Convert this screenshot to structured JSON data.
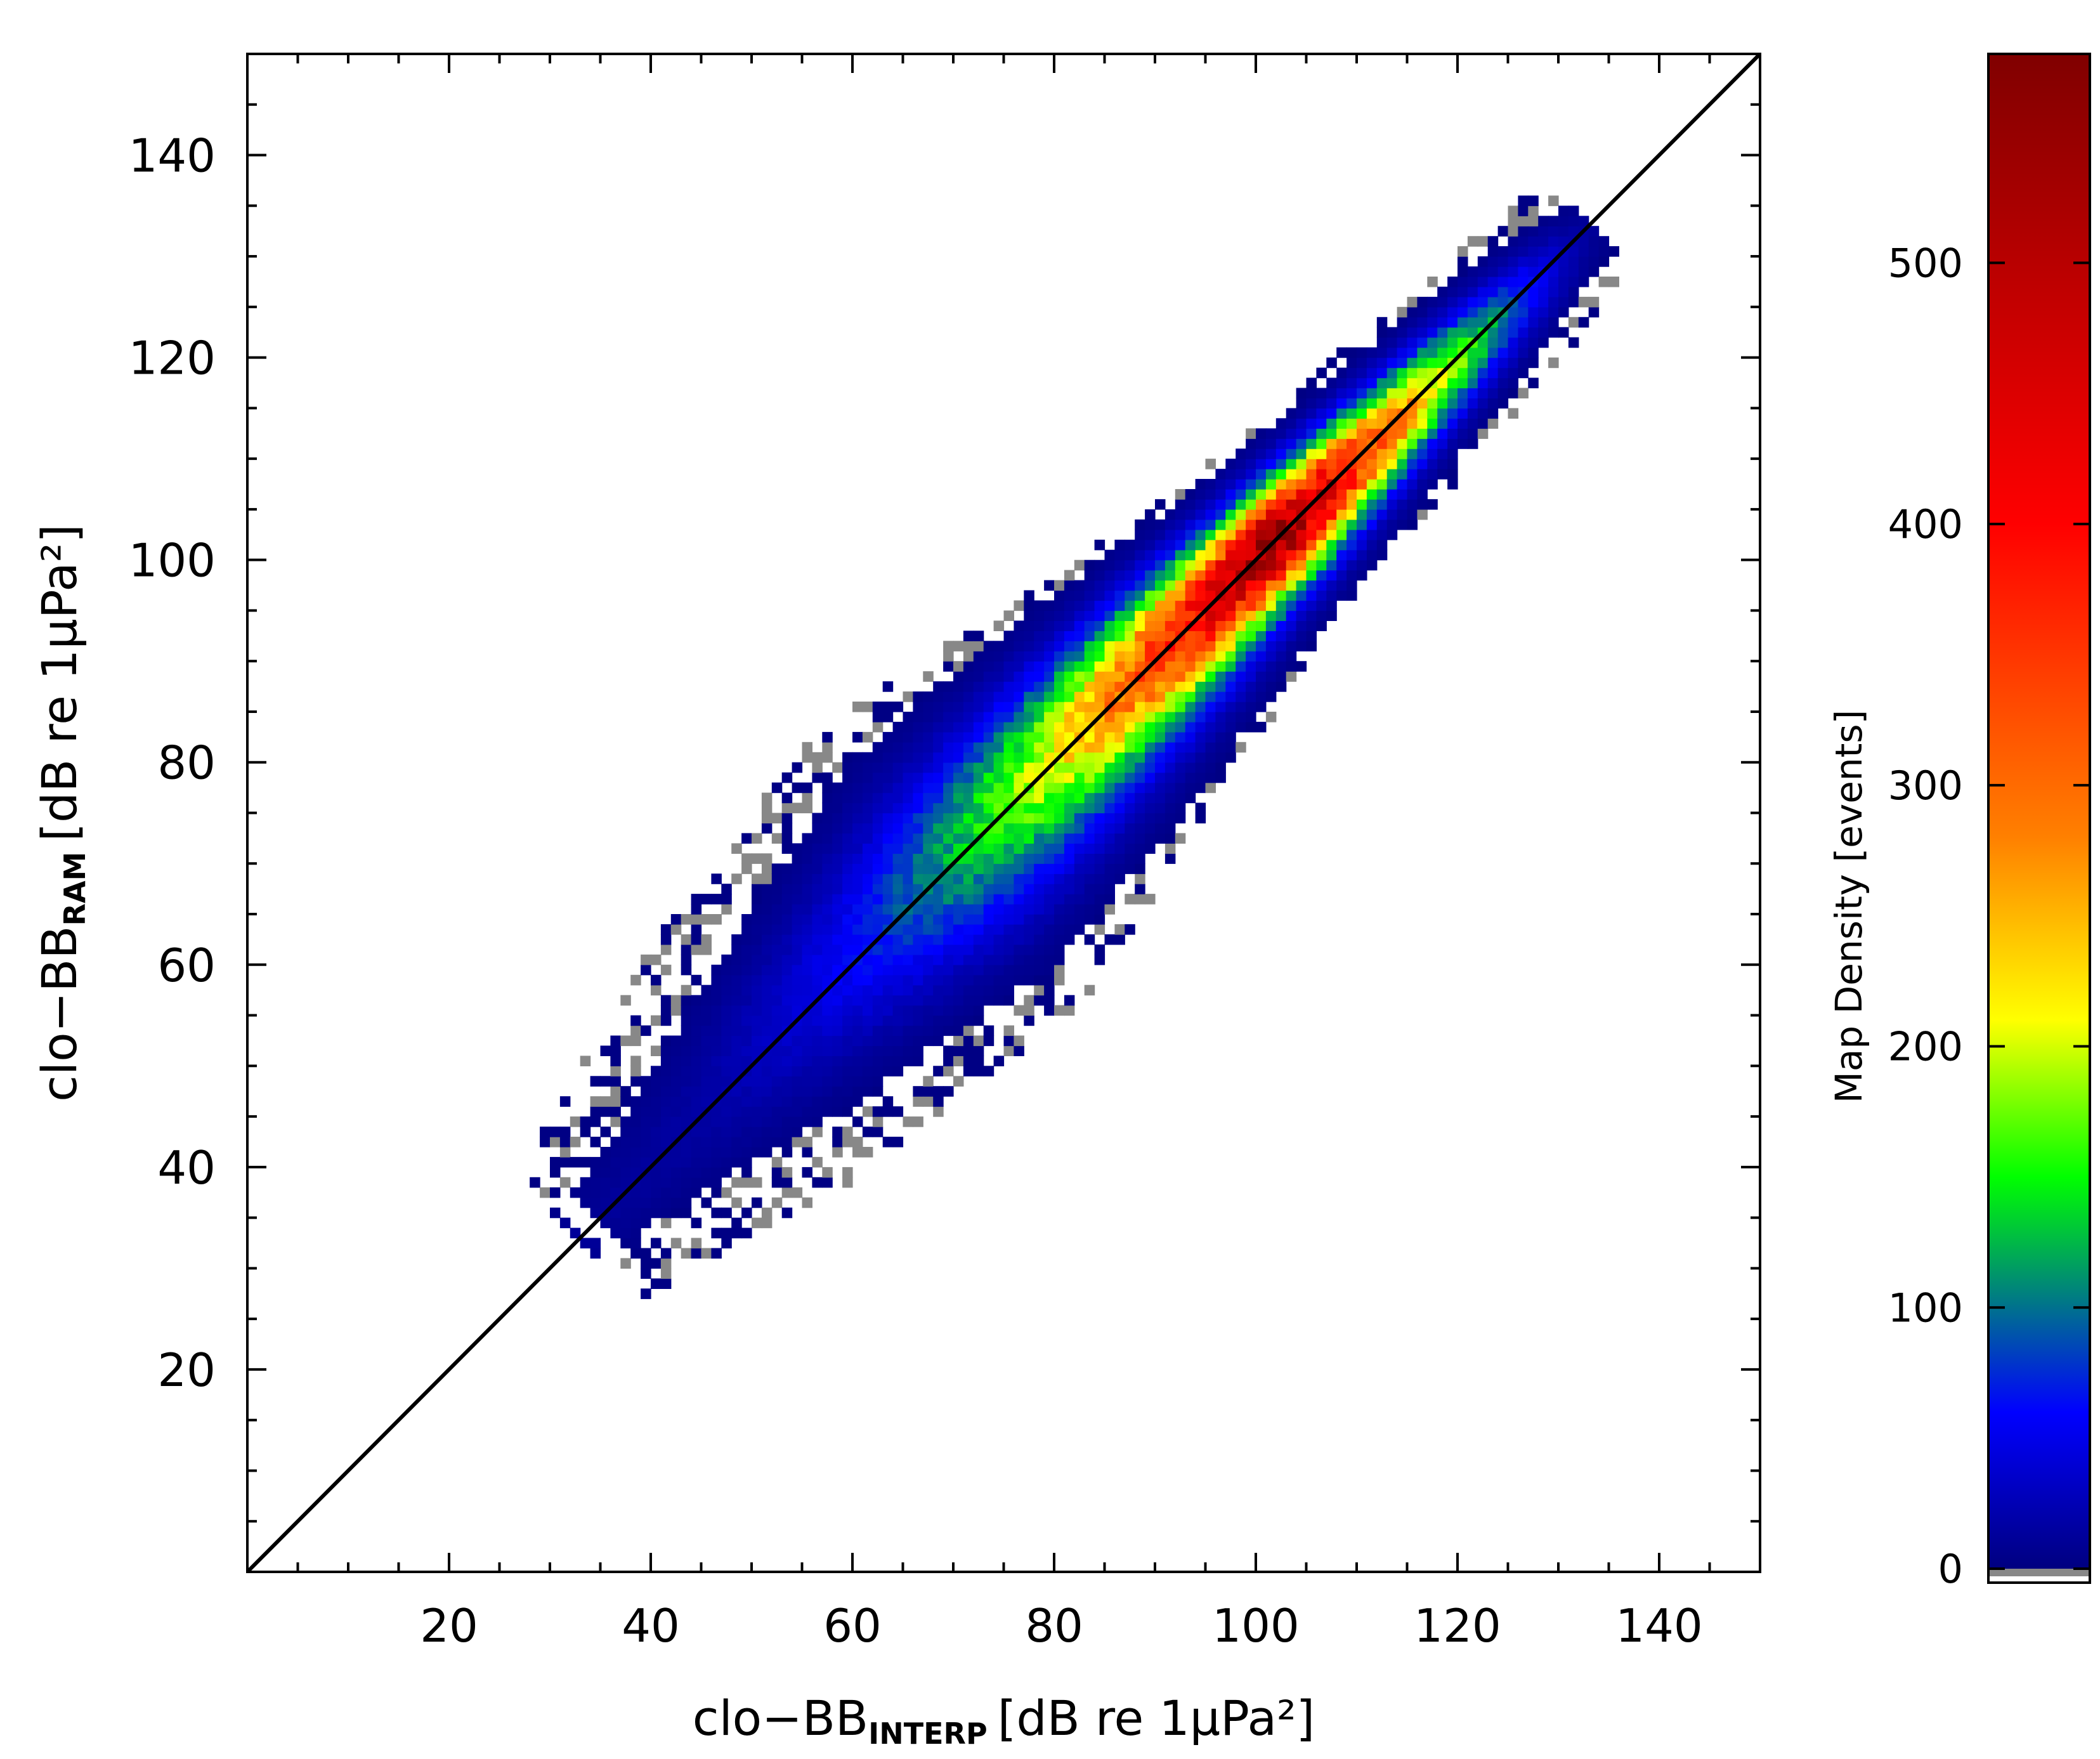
{
  "chart_data": {
    "type": "heatmap",
    "x_label": {
      "main": "clo−BB",
      "subscript": "INTERP",
      "units": "[dB re 1μPa²]"
    },
    "y_label": {
      "main": "clo−BB",
      "subscript": "RAM",
      "units": "[dB re 1μPa²]"
    },
    "xlim": [
      0,
      150
    ],
    "ylim": [
      0,
      150
    ],
    "x_ticks": [
      20,
      40,
      60,
      80,
      100,
      120,
      140
    ],
    "y_ticks": [
      20,
      40,
      60,
      80,
      100,
      120,
      140
    ],
    "reference_line": {
      "from": [
        0,
        0
      ],
      "to": [
        150,
        150
      ],
      "color": "#000000"
    },
    "density_model": {
      "axis_u_range": [
        33,
        133
      ],
      "peak_u": 102,
      "peak_count": 560,
      "spread_sd_at_u": [
        [
          33,
          2.5
        ],
        [
          50,
          4.5
        ],
        [
          70,
          5.5
        ],
        [
          100,
          3.0
        ],
        [
          130,
          2.0
        ]
      ],
      "offset_v": 0
    },
    "colorbar": {
      "title": "Map Density [events]",
      "min": 0,
      "max": 580,
      "ticks": [
        0,
        100,
        200,
        300,
        400,
        500
      ],
      "zero_color": "#888888",
      "colors": [
        "#000080",
        "#0000ff",
        "#00ff00",
        "#ffff00",
        "#ff8000",
        "#ff0000",
        "#800000"
      ],
      "color_stops": [
        0,
        60,
        150,
        210,
        280,
        400,
        580
      ]
    }
  }
}
